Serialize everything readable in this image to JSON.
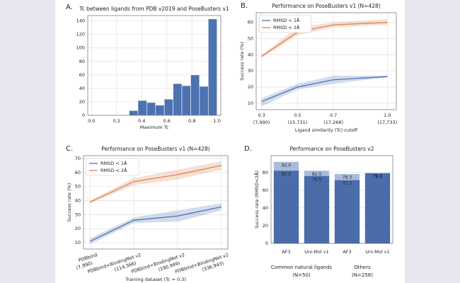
{
  "chart_data": [
    {
      "type": "histogram",
      "panel_label": "A.",
      "title": "Tc between ligands from PDB v2019 and PoseBusters v1",
      "xlabel": "Maximum Tc",
      "bins": [
        0.3,
        0.37,
        0.44,
        0.51,
        0.58,
        0.65,
        0.72,
        0.79,
        0.86,
        0.93,
        1.0
      ],
      "values": [
        7,
        22,
        19,
        15,
        24,
        47,
        44,
        60,
        43,
        143
      ],
      "color": "#4c72b0",
      "xlim": [
        -0.03,
        1.03
      ],
      "xticks": [
        {
          "value": 0,
          "label": "0.0"
        },
        {
          "value": 0.2,
          "label": "0.2"
        },
        {
          "value": 0.4,
          "label": "0.4"
        },
        {
          "value": 0.6,
          "label": "0.6"
        },
        {
          "value": 0.8,
          "label": "0.8"
        },
        {
          "value": 1,
          "label": "1.0"
        }
      ],
      "ylim": [
        0,
        148
      ],
      "yticks": [
        0,
        20,
        40,
        60,
        80,
        100,
        120,
        140
      ],
      "grid": true
    },
    {
      "type": "line",
      "panel_label": "B.",
      "title": "Performance on PoseBusters v1 (N=428)",
      "xlabel": "Ligand similarity (Tc) cutoff",
      "ylabel": "Success rate (%)",
      "x": [
        0.3,
        0.5,
        0.7,
        1.0
      ],
      "xticks": [
        {
          "value": 0.3,
          "label": "0.3"
        },
        {
          "value": 0.5,
          "label": "0.5"
        },
        {
          "value": 0.7,
          "label": "0.7"
        },
        {
          "value": 1,
          "label": "1.0"
        }
      ],
      "xtick_counts": [
        "(7,990)",
        "(15,731)",
        "(17,268)",
        "(17,733)"
      ],
      "xlim": [
        0.27,
        1.05
      ],
      "ylim": [
        6,
        66
      ],
      "yticks": [
        10,
        20,
        30,
        40,
        50,
        60
      ],
      "grid": true,
      "legend": "upper left",
      "series": [
        {
          "name": "RMSD < 1Å",
          "color": "#4c72b0",
          "values": [
            11,
            20,
            24.5,
            26.5
          ],
          "lower": [
            8,
            18.5,
            22,
            26
          ],
          "upper": [
            13,
            22,
            27,
            27
          ]
        },
        {
          "name": "RMSD < 2Å",
          "color": "#dd8452",
          "values": [
            39,
            54,
            58.5,
            60
          ],
          "lower": [
            38,
            52,
            57,
            58.5
          ],
          "upper": [
            40,
            57,
            60,
            62
          ]
        }
      ]
    },
    {
      "type": "line",
      "panel_label": "C.",
      "title": "Performance on PoseBusters v1 (N=428)",
      "xlabel": "Training dataset (Tc = 0.3)",
      "ylabel": "Success rate (%)",
      "categories": [
        "PDBbind",
        "PDBbind+BindingNet v2",
        "PDBbind+BindingNet v2",
        "PDBbind+BindingNet v2"
      ],
      "category_counts": [
        "(7,990)",
        "(114,366)",
        "(190,999)",
        "(336,943)"
      ],
      "ylim": [
        5.5,
        72
      ],
      "yticks": [
        10,
        20,
        30,
        40,
        50,
        60,
        70
      ],
      "grid": true,
      "legend": "upper left",
      "series": [
        {
          "name": "RMSD < 1Å",
          "color": "#4c72b0",
          "values": [
            11,
            26,
            29,
            35.5
          ],
          "lower": [
            9,
            24,
            25,
            33
          ],
          "upper": [
            13,
            28,
            33,
            38
          ]
        },
        {
          "name": "RMSD < 2Å",
          "color": "#dd8452",
          "values": [
            39,
            53.5,
            58.5,
            65
          ],
          "lower": [
            38,
            51,
            55,
            62
          ],
          "upper": [
            40,
            56,
            62,
            68
          ]
        }
      ]
    },
    {
      "type": "bar",
      "panel_label": "D.",
      "title": "Performance on PoseBusters v2",
      "ylabel": "Success rate (RMSD<2Å)",
      "categories": [
        "AF3",
        "Uni-Mol v1",
        "AF3",
        "Uni-Mol v1"
      ],
      "groups": [
        {
          "label": "Common natural ligands",
          "note": "(N=50)"
        },
        {
          "label": "Others",
          "note": "(N=258)"
        }
      ],
      "series": [
        {
          "color": "#a9bcd8",
          "values": [
            92,
            82,
            78.3,
            79.5
          ],
          "value_labels": [
            "92.0",
            "82.0",
            "78.3",
            "79.5"
          ]
        },
        {
          "color": "#4a6ca8",
          "values": [
            82,
            76,
            71.3,
            79.1
          ],
          "value_labels": [
            "82.0",
            "76.0",
            "71.3",
            "79.1"
          ]
        }
      ],
      "ylim": [
        0,
        99
      ],
      "yticks": [
        0,
        20,
        40,
        60,
        80
      ],
      "grid": "y"
    }
  ]
}
